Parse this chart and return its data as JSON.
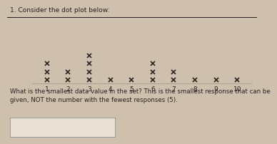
{
  "title": "1. Consider the dot plot below:",
  "question_text": "What is the smallest data value in the set? This is the smallest response that can be\ngiven, NOT the number with the fewest responses (5).",
  "dot_data": {
    "1": 3,
    "2": 2,
    "3": 4,
    "4": 1,
    "5": 1,
    "6": 3,
    "7": 2,
    "8": 1,
    "9": 1,
    "10": 1
  },
  "background_color": "#cfc0ad",
  "text_color": "#2a2020",
  "marker_size": 5,
  "marker_color": "#2a2020",
  "answer_box_color": "#e8e0d5",
  "answer_box_border": "#999999",
  "axis_line_color": "#2a2020",
  "title_fontsize": 6.5,
  "question_fontsize": 6.2,
  "tick_fontsize": 6.5
}
